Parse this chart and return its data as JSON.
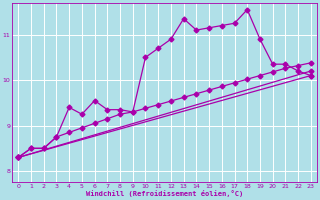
{
  "background_color": "#b0e0e8",
  "grid_color": "#ffffff",
  "line_color": "#aa00aa",
  "xlabel": "Windchill (Refroidissement éolien,°C)",
  "xlim": [
    -0.5,
    23.5
  ],
  "ylim": [
    7.75,
    11.7
  ],
  "yticks": [
    8,
    9,
    10,
    11
  ],
  "xticks": [
    0,
    1,
    2,
    3,
    4,
    5,
    6,
    7,
    8,
    9,
    10,
    11,
    12,
    13,
    14,
    15,
    16,
    17,
    18,
    19,
    20,
    21,
    22,
    23
  ],
  "series": [
    {
      "x": [
        0,
        1,
        2,
        3,
        4,
        5,
        6,
        7,
        8,
        9,
        10,
        11,
        12,
        13,
        14,
        15,
        16,
        17,
        18,
        19,
        20,
        21,
        22,
        23
      ],
      "y": [
        8.3,
        8.5,
        8.5,
        8.75,
        9.4,
        9.25,
        9.55,
        9.35,
        9.35,
        9.3,
        10.5,
        10.7,
        10.9,
        11.35,
        11.1,
        11.15,
        11.2,
        11.25,
        11.55,
        10.9,
        10.35,
        10.35,
        10.2,
        10.1
      ],
      "marker": "D",
      "markersize": 2.5,
      "linewidth": 0.9
    },
    {
      "x": [
        0,
        1,
        2,
        3,
        4,
        5,
        6,
        7,
        8,
        9,
        10,
        11,
        12,
        13,
        14,
        15,
        16,
        17,
        18,
        19,
        20,
        21,
        22,
        23
      ],
      "y": [
        8.3,
        8.5,
        8.5,
        8.75,
        8.85,
        8.95,
        9.05,
        9.15,
        9.25,
        9.3,
        9.38,
        9.46,
        9.54,
        9.62,
        9.7,
        9.78,
        9.86,
        9.94,
        10.02,
        10.1,
        10.18,
        10.26,
        10.32,
        10.38
      ],
      "marker": "D",
      "markersize": 2.5,
      "linewidth": 0.9
    },
    {
      "x": [
        0,
        23
      ],
      "y": [
        8.3,
        10.2
      ],
      "marker": "D",
      "markersize": 2.5,
      "linewidth": 0.9
    },
    {
      "x": [
        0,
        23
      ],
      "y": [
        8.3,
        10.1
      ],
      "marker": "D",
      "markersize": 2.5,
      "linewidth": 0.9
    }
  ]
}
